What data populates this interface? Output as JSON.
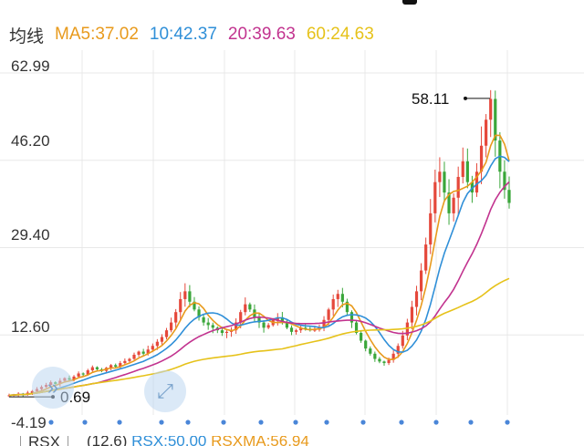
{
  "legend": {
    "title": "均线",
    "ma5": "MA5:37.02",
    "ma10": "10:42.37",
    "ma20": "20:39.63",
    "ma60": "60:24.63"
  },
  "colors": {
    "up": "#e5483b",
    "down": "#3aa63a",
    "ma5": "#e89a1c",
    "ma10": "#2f8fd8",
    "ma20": "#c2338f",
    "ma60": "#e6c21a",
    "grid": "#e8e8e8"
  },
  "y_axis": {
    "labels": [
      "62.99",
      "46.20",
      "29.40",
      "12.60",
      "-4.19"
    ]
  },
  "annotations": {
    "high": "58.11",
    "low": "0.69"
  },
  "indicator_bar": {
    "button": "RSX",
    "params": "(12,6)",
    "rsx": "RSX:50.00",
    "rsxma": "RSXMA:56.94"
  },
  "nav_icons": [
    "fast-forward-icon",
    "expand-icon"
  ],
  "chart_data": {
    "type": "candlestick",
    "ylim": [
      -4.19,
      62.99
    ],
    "grid": true,
    "high_marker": 58.11,
    "low_marker": 0.69,
    "price_path": [
      1.0,
      1.1,
      1.3,
      1.2,
      1.5,
      1.8,
      2.2,
      2.6,
      3.0,
      3.5,
      3.2,
      3.8,
      4.3,
      4.0,
      4.6,
      5.2,
      5.0,
      5.8,
      6.4,
      6.0,
      5.7,
      6.3,
      6.8,
      6.5,
      7.2,
      7.6,
      8.0,
      8.8,
      9.4,
      9.0,
      9.8,
      10.5,
      11.3,
      12.2,
      13.5,
      15.0,
      17.0,
      19.5,
      21.0,
      19.0,
      17.5,
      16.0,
      15.0,
      14.5,
      14.0,
      13.5,
      13.0,
      13.2,
      13.5,
      15.0,
      17.0,
      18.5,
      17.5,
      16.0,
      15.0,
      14.0,
      14.5,
      15.5,
      16.0,
      15.0,
      14.0,
      13.2,
      13.5,
      14.0,
      13.8,
      13.5,
      13.6,
      14.0,
      15.5,
      17.5,
      19.5,
      20.5,
      19.0,
      17.0,
      15.0,
      13.0,
      11.5,
      10.0,
      9.0,
      8.0,
      7.5,
      7.2,
      7.8,
      9.0,
      10.5,
      12.5,
      15.0,
      18.0,
      21.0,
      25.0,
      30.0,
      36.0,
      42.0,
      44.0,
      40.0,
      36.0,
      39.0,
      43.0,
      46.0,
      42.0,
      40.0,
      44.0,
      49.0,
      54.0,
      58.0,
      50.0,
      44.0,
      40.5,
      38.0
    ]
  }
}
